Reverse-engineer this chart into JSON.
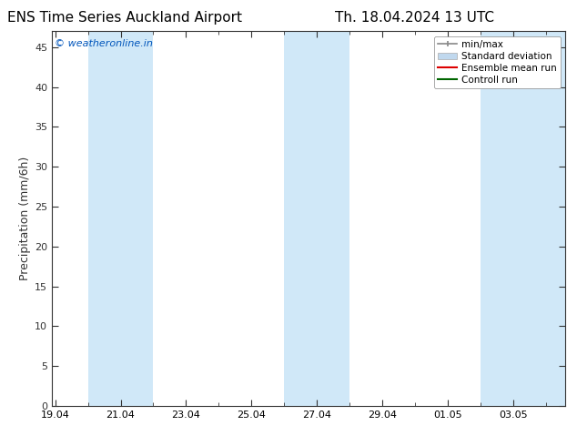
{
  "title_left": "ENS Time Series Auckland Airport",
  "title_right": "Th. 18.04.2024 13 UTC",
  "ylabel": "Precipitation (mm/6h)",
  "watermark": "© weatheronline.in",
  "watermark_color": "#0055bb",
  "background_color": "#ffffff",
  "plot_bg_color": "#ffffff",
  "shaded_band_color": "#d0e8f8",
  "ylim": [
    0,
    47
  ],
  "yticks": [
    0,
    5,
    10,
    15,
    20,
    25,
    30,
    35,
    40,
    45
  ],
  "xtick_labels": [
    "19.04",
    "21.04",
    "23.04",
    "25.04",
    "27.04",
    "29.04",
    "01.05",
    "03.05"
  ],
  "xtick_positions": [
    0,
    2,
    4,
    6,
    8,
    10,
    12,
    14
  ],
  "x_min": -0.1,
  "x_max": 15.6,
  "shaded_regions": [
    {
      "start": 1.0,
      "end": 3.0
    },
    {
      "start": 7.0,
      "end": 9.0
    },
    {
      "start": 13.0,
      "end": 15.6
    }
  ],
  "title_fontsize": 11,
  "tick_fontsize": 8,
  "ylabel_fontsize": 9,
  "watermark_fontsize": 8,
  "legend_fontsize": 7.5,
  "spine_color": "#333333",
  "tick_color": "#333333",
  "minmax_color": "#888888",
  "stddev_color": "#c0d8ee",
  "ensemble_color": "#dd0000",
  "control_color": "#006600"
}
